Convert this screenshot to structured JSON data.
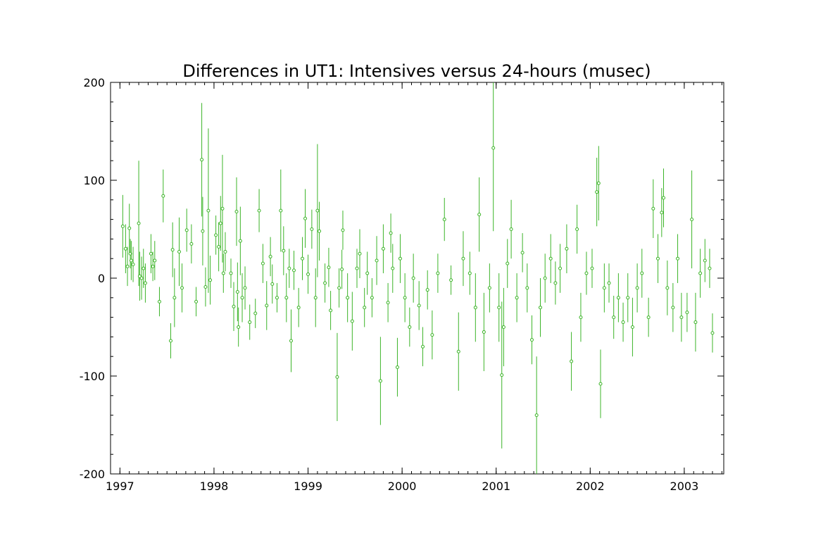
{
  "chart_data": {
    "type": "scatter",
    "title": "Differences in UT1: Intensives versus 24-hours (musec)",
    "xlabel": "",
    "ylabel": "",
    "xlim": [
      1996.9,
      2003.42
    ],
    "ylim": [
      -200,
      200
    ],
    "x_ticks": [
      1997,
      1998,
      1999,
      2000,
      2001,
      2002,
      2003
    ],
    "x_tick_labels": [
      "1997",
      "1998",
      "1999",
      "2000",
      "2001",
      "2002",
      "2003"
    ],
    "y_ticks": [
      -200,
      -100,
      0,
      100,
      200
    ],
    "y_tick_labels": [
      "-200",
      "-100",
      "0",
      "100",
      "200"
    ],
    "grid": false,
    "legend": "none",
    "marker": "open circle with vertical error bar",
    "color": "#3cb428",
    "points_note": "[x_year, y_musec, error_musec]",
    "points": [
      [
        1997.03,
        53,
        32
      ],
      [
        1997.06,
        30,
        25
      ],
      [
        1997.08,
        12,
        20
      ],
      [
        1997.1,
        51,
        25
      ],
      [
        1997.11,
        25,
        15
      ],
      [
        1997.12,
        18,
        20
      ],
      [
        1997.14,
        14,
        18
      ],
      [
        1997.2,
        56,
        64
      ],
      [
        1997.21,
        2,
        25
      ],
      [
        1997.23,
        0,
        22
      ],
      [
        1997.25,
        10,
        20
      ],
      [
        1997.27,
        -5,
        20
      ],
      [
        1997.33,
        25,
        20
      ],
      [
        1997.35,
        12,
        15
      ],
      [
        1997.37,
        18,
        20
      ],
      [
        1997.42,
        -24,
        15
      ],
      [
        1997.46,
        84,
        27
      ],
      [
        1997.54,
        -64,
        18
      ],
      [
        1997.56,
        29,
        28
      ],
      [
        1997.58,
        -20,
        30
      ],
      [
        1997.63,
        27,
        35
      ],
      [
        1997.66,
        -10,
        25
      ],
      [
        1997.71,
        49,
        22
      ],
      [
        1997.76,
        35,
        20
      ],
      [
        1997.81,
        -24,
        15
      ],
      [
        1997.87,
        121,
        58
      ],
      [
        1997.88,
        48,
        35
      ],
      [
        1997.91,
        -9,
        20
      ],
      [
        1997.94,
        69,
        84
      ],
      [
        1997.96,
        -2,
        25
      ],
      [
        1998.02,
        44,
        20
      ],
      [
        1998.05,
        32,
        25
      ],
      [
        1998.07,
        56,
        28
      ],
      [
        1998.09,
        71,
        55
      ],
      [
        1998.1,
        5,
        20
      ],
      [
        1998.12,
        27,
        20
      ],
      [
        1998.18,
        5,
        15
      ],
      [
        1998.21,
        -29,
        25
      ],
      [
        1998.24,
        68,
        35
      ],
      [
        1998.25,
        -14,
        30
      ],
      [
        1998.26,
        -50,
        20
      ],
      [
        1998.28,
        38,
        35
      ],
      [
        1998.3,
        -20,
        25
      ],
      [
        1998.33,
        -10,
        22
      ],
      [
        1998.38,
        -45,
        18
      ],
      [
        1998.44,
        -36,
        15
      ],
      [
        1998.48,
        69,
        22
      ],
      [
        1998.52,
        15,
        20
      ],
      [
        1998.56,
        -28,
        25
      ],
      [
        1998.6,
        22,
        20
      ],
      [
        1998.62,
        -6,
        20
      ],
      [
        1998.67,
        -20,
        15
      ],
      [
        1998.71,
        69,
        42
      ],
      [
        1998.74,
        28,
        25
      ],
      [
        1998.77,
        -20,
        25
      ],
      [
        1998.8,
        10,
        20
      ],
      [
        1998.82,
        -64,
        32
      ],
      [
        1998.85,
        8,
        20
      ],
      [
        1998.9,
        -30,
        20
      ],
      [
        1998.94,
        20,
        22
      ],
      [
        1998.97,
        61,
        30
      ],
      [
        1999.0,
        4,
        20
      ],
      [
        1999.04,
        50,
        20
      ],
      [
        1999.08,
        -20,
        30
      ],
      [
        1999.1,
        69,
        68
      ],
      [
        1999.12,
        48,
        30
      ],
      [
        1999.18,
        -5,
        20
      ],
      [
        1999.22,
        11,
        20
      ],
      [
        1999.24,
        -33,
        20
      ],
      [
        1999.31,
        -101,
        45
      ],
      [
        1999.33,
        -10,
        20
      ],
      [
        1999.36,
        9,
        20
      ],
      [
        1999.37,
        49,
        20
      ],
      [
        1999.42,
        -20,
        25
      ],
      [
        1999.47,
        -44,
        30
      ],
      [
        1999.52,
        10,
        20
      ],
      [
        1999.55,
        25,
        25
      ],
      [
        1999.6,
        -30,
        20
      ],
      [
        1999.63,
        5,
        22
      ],
      [
        1999.68,
        -20,
        20
      ],
      [
        1999.73,
        18,
        25
      ],
      [
        1999.77,
        -105,
        45
      ],
      [
        1999.8,
        30,
        25
      ],
      [
        1999.85,
        -25,
        20
      ],
      [
        1999.88,
        46,
        20
      ],
      [
        1999.9,
        10,
        25
      ],
      [
        1999.95,
        -91,
        30
      ],
      [
        1999.98,
        20,
        25
      ],
      [
        2000.03,
        -20,
        25
      ],
      [
        2000.08,
        -50,
        20
      ],
      [
        2000.12,
        0,
        25
      ],
      [
        2000.18,
        -28,
        25
      ],
      [
        2000.22,
        -70,
        20
      ],
      [
        2000.27,
        -12,
        20
      ],
      [
        2000.32,
        -58,
        25
      ],
      [
        2000.38,
        5,
        20
      ],
      [
        2000.45,
        60,
        22
      ],
      [
        2000.52,
        -2,
        15
      ],
      [
        2000.6,
        -75,
        40
      ],
      [
        2000.65,
        20,
        28
      ],
      [
        2000.72,
        5,
        22
      ],
      [
        2000.78,
        -30,
        35
      ],
      [
        2000.82,
        65,
        38
      ],
      [
        2000.87,
        -55,
        40
      ],
      [
        2000.93,
        -10,
        25
      ],
      [
        2000.97,
        133,
        85
      ],
      [
        2001.03,
        -30,
        35
      ],
      [
        2001.06,
        -99,
        75
      ],
      [
        2001.08,
        -50,
        40
      ],
      [
        2001.12,
        15,
        25
      ],
      [
        2001.16,
        50,
        30
      ],
      [
        2001.22,
        -20,
        25
      ],
      [
        2001.28,
        26,
        20
      ],
      [
        2001.33,
        -10,
        25
      ],
      [
        2001.38,
        -63,
        25
      ],
      [
        2001.43,
        -140,
        60
      ],
      [
        2001.47,
        -30,
        30
      ],
      [
        2001.52,
        0,
        25
      ],
      [
        2001.58,
        20,
        25
      ],
      [
        2001.63,
        -5,
        22
      ],
      [
        2001.68,
        10,
        25
      ],
      [
        2001.75,
        30,
        25
      ],
      [
        2001.8,
        -85,
        30
      ],
      [
        2001.86,
        50,
        25
      ],
      [
        2001.9,
        -40,
        25
      ],
      [
        2001.96,
        5,
        22
      ],
      [
        2002.02,
        10,
        20
      ],
      [
        2002.07,
        88,
        35
      ],
      [
        2002.09,
        97,
        38
      ],
      [
        2002.11,
        -108,
        35
      ],
      [
        2002.15,
        -10,
        25
      ],
      [
        2002.2,
        -5,
        20
      ],
      [
        2002.25,
        -40,
        22
      ],
      [
        2002.3,
        -20,
        25
      ],
      [
        2002.35,
        -45,
        20
      ],
      [
        2002.4,
        -20,
        25
      ],
      [
        2002.45,
        -50,
        30
      ],
      [
        2002.5,
        -10,
        25
      ],
      [
        2002.55,
        5,
        25
      ],
      [
        2002.62,
        -40,
        20
      ],
      [
        2002.67,
        71,
        30
      ],
      [
        2002.72,
        20,
        25
      ],
      [
        2002.76,
        67,
        25
      ],
      [
        2002.78,
        82,
        30
      ],
      [
        2002.82,
        -10,
        28
      ],
      [
        2002.88,
        -30,
        25
      ],
      [
        2002.93,
        20,
        25
      ],
      [
        2002.97,
        -40,
        25
      ],
      [
        2003.03,
        -35,
        20
      ],
      [
        2003.08,
        60,
        50
      ],
      [
        2003.12,
        -45,
        30
      ],
      [
        2003.17,
        5,
        25
      ],
      [
        2003.22,
        18,
        22
      ],
      [
        2003.27,
        10,
        20
      ],
      [
        2003.3,
        -56,
        20
      ]
    ]
  }
}
